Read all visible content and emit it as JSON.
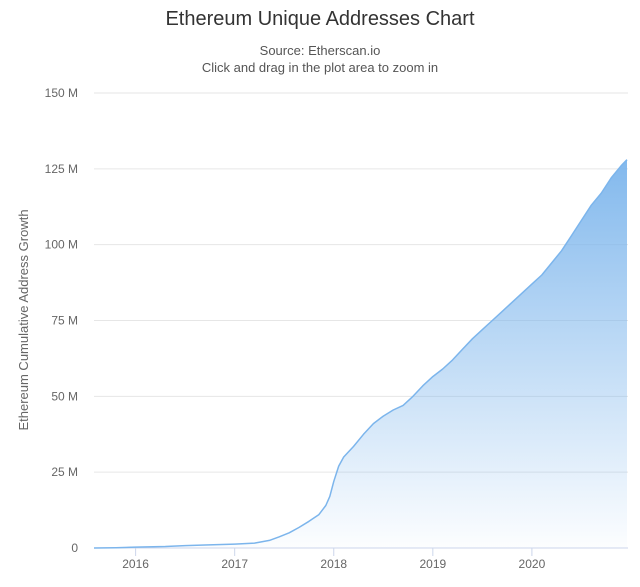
{
  "chart_data": {
    "type": "area",
    "title": "Ethereum Unique Addresses Chart",
    "subtitle_lines": [
      "Source: Etherscan.io",
      "Click and drag in the plot area to zoom in"
    ],
    "ylabel": "Ethereum Cumulative Address Growth",
    "xlabel": "",
    "ylim": [
      0,
      150000000
    ],
    "xlim": [
      2015.58,
      2020.97
    ],
    "yticks": [
      {
        "value": 0,
        "label": "0"
      },
      {
        "value": 25000000,
        "label": "25 M"
      },
      {
        "value": 50000000,
        "label": "50 M"
      },
      {
        "value": 75000000,
        "label": "75 M"
      },
      {
        "value": 100000000,
        "label": "100 M"
      },
      {
        "value": 125000000,
        "label": "125 M"
      },
      {
        "value": 150000000,
        "label": "150 M"
      }
    ],
    "xticks": [
      {
        "value": 2016,
        "label": "2016"
      },
      {
        "value": 2017,
        "label": "2017"
      },
      {
        "value": 2018,
        "label": "2018"
      },
      {
        "value": 2019,
        "label": "2019"
      },
      {
        "value": 2020,
        "label": "2020"
      }
    ],
    "grid": true,
    "color": "#7cb5ec",
    "series": [
      {
        "x": [
          2015.58,
          2015.8,
          2016.0,
          2016.3,
          2016.5,
          2016.7,
          2017.0,
          2017.2,
          2017.35,
          2017.45,
          2017.55,
          2017.65,
          2017.75,
          2017.85,
          2017.92,
          2017.96,
          2018.0,
          2018.05,
          2018.1,
          2018.2,
          2018.3,
          2018.4,
          2018.5,
          2018.6,
          2018.7,
          2018.8,
          2018.9,
          2019.0,
          2019.1,
          2019.2,
          2019.3,
          2019.4,
          2019.5,
          2019.6,
          2019.7,
          2019.8,
          2019.9,
          2020.0,
          2020.1,
          2020.2,
          2020.3,
          2020.4,
          2020.5,
          2020.6,
          2020.7,
          2020.8,
          2020.9,
          2020.96
        ],
        "y": [
          0,
          100000,
          300000,
          500000,
          800000,
          1000000,
          1300000,
          1600000,
          2500000,
          3700000,
          5000000,
          6800000,
          8800000,
          11000000,
          14000000,
          17000000,
          22000000,
          27000000,
          30000000,
          33500000,
          37500000,
          41000000,
          43500000,
          45500000,
          47000000,
          50000000,
          53500000,
          56500000,
          59000000,
          62000000,
          65500000,
          69000000,
          72000000,
          75000000,
          78000000,
          81000000,
          84000000,
          87000000,
          90000000,
          94000000,
          98000000,
          103000000,
          108000000,
          113000000,
          117000000,
          122000000,
          126000000,
          128000000
        ]
      }
    ]
  }
}
